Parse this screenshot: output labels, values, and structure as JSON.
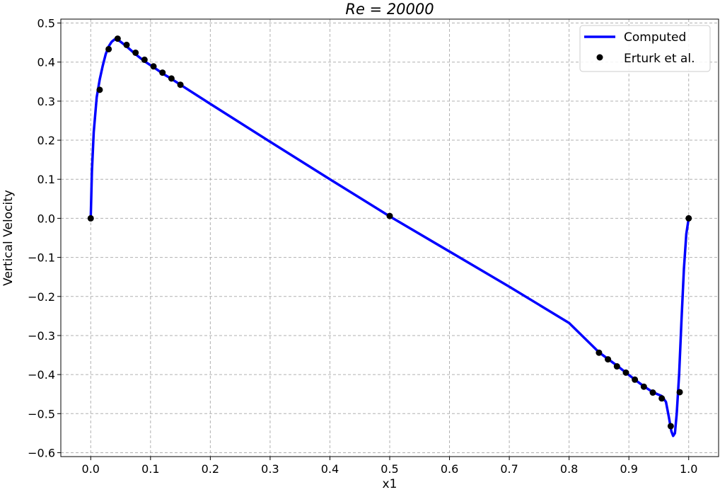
{
  "chart_data": {
    "type": "line",
    "title": "Re = 20000",
    "xlabel": "x1",
    "ylabel": "Vertical Velocity",
    "xlim": [
      -0.05,
      1.05
    ],
    "ylim": [
      -0.61,
      0.51
    ],
    "xticks": [
      "0.0",
      "0.1",
      "0.2",
      "0.3",
      "0.4",
      "0.5",
      "0.6",
      "0.7",
      "0.8",
      "0.9",
      "1.0"
    ],
    "yticks": [
      "0.5",
      "0.4",
      "0.3",
      "0.2",
      "0.1",
      "0.0",
      "−0.1",
      "−0.2",
      "−0.3",
      "−0.4",
      "−0.5",
      "−0.6"
    ],
    "grid": true,
    "legend_position": "top-right",
    "colors": {
      "computed": "#0000ff",
      "reference": "#000000"
    },
    "series": [
      {
        "name": "Computed",
        "kind": "line",
        "x": [
          0.0,
          0.002,
          0.005,
          0.01,
          0.015,
          0.02,
          0.025,
          0.03,
          0.035,
          0.04,
          0.045,
          0.05,
          0.06,
          0.075,
          0.09,
          0.105,
          0.12,
          0.135,
          0.15,
          0.2,
          0.3,
          0.4,
          0.5,
          0.6,
          0.7,
          0.8,
          0.85,
          0.865,
          0.88,
          0.895,
          0.91,
          0.925,
          0.94,
          0.955,
          0.962,
          0.967,
          0.971,
          0.974,
          0.977,
          0.98,
          0.984,
          0.988,
          0.992,
          0.996,
          1.0
        ],
        "y": [
          0.0,
          0.12,
          0.22,
          0.31,
          0.355,
          0.39,
          0.42,
          0.44,
          0.452,
          0.458,
          0.457,
          0.452,
          0.44,
          0.42,
          0.402,
          0.387,
          0.371,
          0.357,
          0.342,
          0.293,
          0.196,
          0.1,
          0.005,
          -0.085,
          -0.175,
          -0.268,
          -0.343,
          -0.36,
          -0.377,
          -0.395,
          -0.413,
          -0.43,
          -0.445,
          -0.455,
          -0.47,
          -0.51,
          -0.545,
          -0.557,
          -0.55,
          -0.5,
          -0.4,
          -0.26,
          -0.13,
          -0.04,
          0.0
        ]
      },
      {
        "name": "Erturk et al.",
        "kind": "scatter",
        "x": [
          0.0,
          0.015,
          0.03,
          0.045,
          0.06,
          0.075,
          0.09,
          0.105,
          0.12,
          0.135,
          0.15,
          0.5,
          0.85,
          0.865,
          0.88,
          0.895,
          0.91,
          0.925,
          0.94,
          0.955,
          0.97,
          0.985,
          1.0
        ],
        "y": [
          0.0,
          0.329,
          0.433,
          0.46,
          0.444,
          0.424,
          0.406,
          0.389,
          0.373,
          0.358,
          0.342,
          0.006,
          -0.344,
          -0.361,
          -0.379,
          -0.395,
          -0.413,
          -0.431,
          -0.446,
          -0.461,
          -0.532,
          -0.445,
          0.0
        ]
      }
    ]
  }
}
